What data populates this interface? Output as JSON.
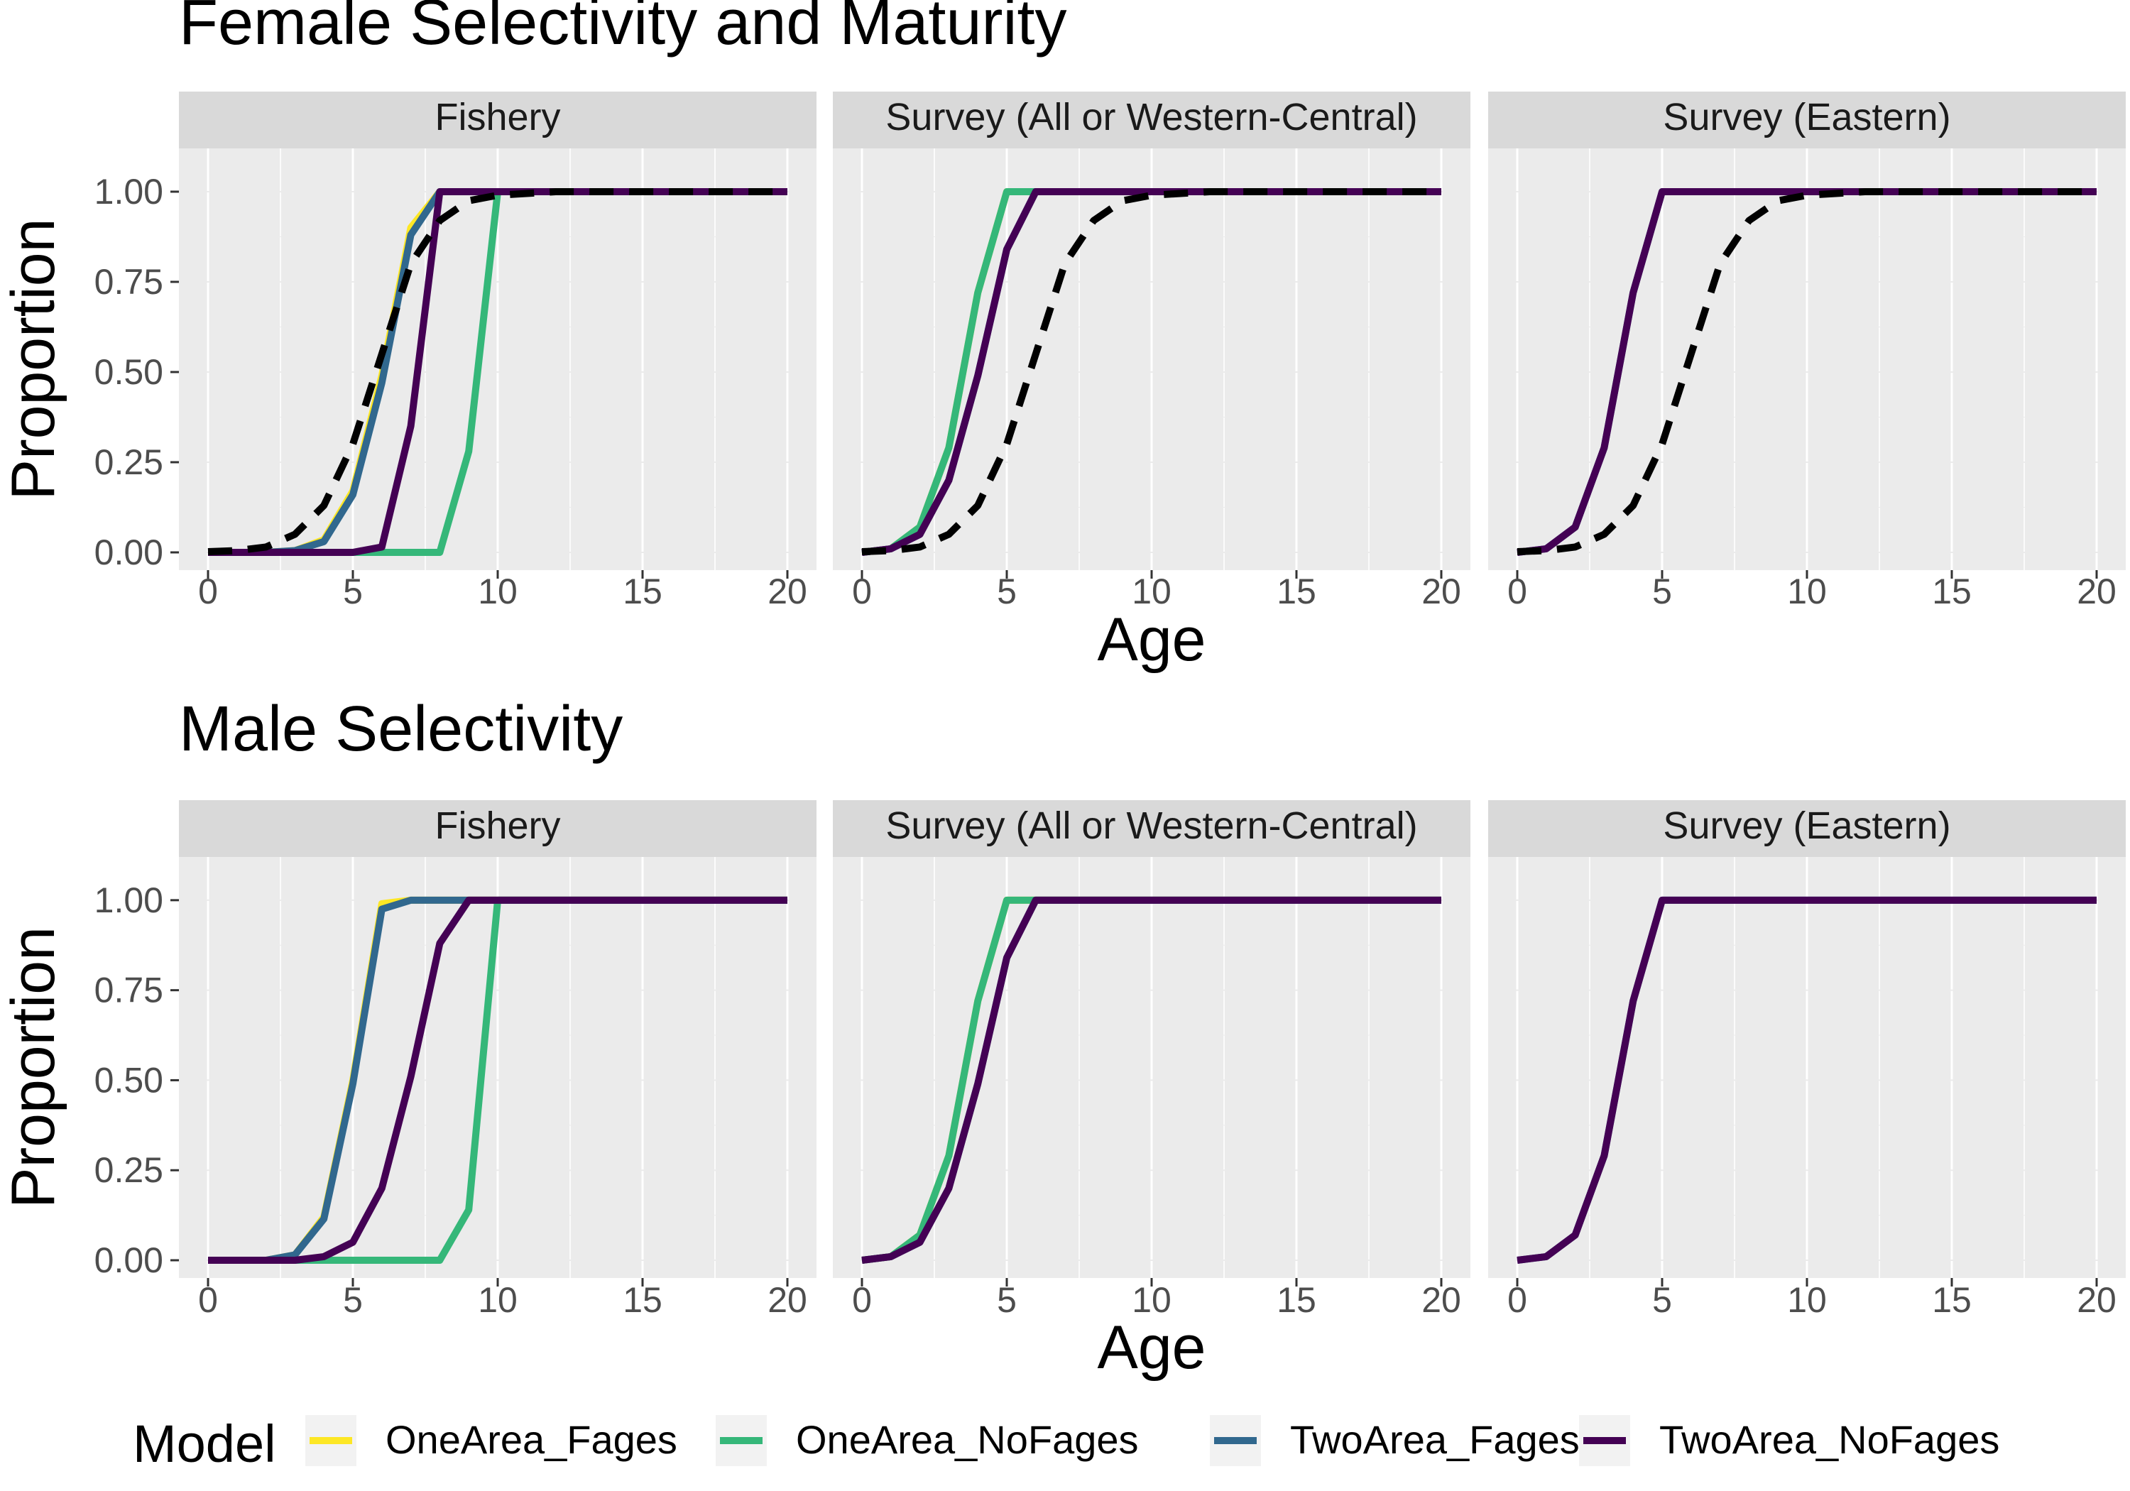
{
  "legend": {
    "title": "Model",
    "items": [
      {
        "label": "OneArea_Fages",
        "color": "#FDE725"
      },
      {
        "label": "OneArea_NoFages",
        "color": "#35B779"
      },
      {
        "label": "TwoArea_Fages",
        "color": "#31688E"
      },
      {
        "label": "TwoArea_NoFages",
        "color": "#440154"
      }
    ],
    "position": "bottom"
  },
  "chart_data": [
    {
      "type": "line",
      "title": "Female Selectivity and Maturity",
      "xlabel": "Age",
      "ylabel": "Proportion",
      "xlim": [
        0,
        20
      ],
      "ylim": [
        0,
        1
      ],
      "x_ticks": [
        0,
        5,
        10,
        15,
        20
      ],
      "y_ticks": [
        "0.00",
        "0.25",
        "0.50",
        "0.75",
        "1.00"
      ],
      "x": [
        0,
        1,
        2,
        3,
        4,
        5,
        6,
        7,
        8,
        9,
        10,
        11,
        12,
        13,
        14,
        15,
        16,
        17,
        18,
        19,
        20
      ],
      "panels": [
        {
          "label": "Fishery",
          "series": [
            {
              "name": "OneArea_Fages",
              "values": [
                0,
                0,
                0,
                0.005,
                0.035,
                0.17,
                0.49,
                0.9,
                1,
                1,
                1,
                1,
                1,
                1,
                1,
                1,
                1,
                1,
                1,
                1,
                1
              ]
            },
            {
              "name": "OneArea_NoFages",
              "values": [
                0,
                0,
                0,
                0,
                0,
                0,
                0,
                0,
                0,
                0.28,
                1,
                1,
                1,
                1,
                1,
                1,
                1,
                1,
                1,
                1,
                1
              ]
            },
            {
              "name": "TwoArea_Fages",
              "values": [
                0,
                0,
                0,
                0.005,
                0.03,
                0.16,
                0.47,
                0.88,
                1,
                1,
                1,
                1,
                1,
                1,
                1,
                1,
                1,
                1,
                1,
                1,
                1
              ]
            },
            {
              "name": "TwoArea_NoFages",
              "values": [
                0,
                0,
                0,
                0,
                0,
                0,
                0.015,
                0.35,
                1,
                1,
                1,
                1,
                1,
                1,
                1,
                1,
                1,
                1,
                1,
                1,
                1
              ]
            },
            {
              "name": "",
              "dashed": true,
              "values": [
                0.002,
                0.005,
                0.015,
                0.05,
                0.13,
                0.3,
                0.55,
                0.8,
                0.92,
                0.975,
                0.99,
                0.995,
                1,
                1,
                1,
                1,
                1,
                1,
                1,
                1,
                1
              ]
            }
          ]
        },
        {
          "label": "Survey (All or Western-Central)",
          "series": [
            {
              "name": "OneArea_Fages",
              "values": [
                0,
                0.01,
                0.07,
                0.29,
                0.72,
                1,
                1,
                1,
                1,
                1,
                1,
                1,
                1,
                1,
                1,
                1,
                1,
                1,
                1,
                1,
                1
              ]
            },
            {
              "name": "OneArea_NoFages",
              "values": [
                0,
                0.01,
                0.07,
                0.29,
                0.72,
                1,
                1,
                1,
                1,
                1,
                1,
                1,
                1,
                1,
                1,
                1,
                1,
                1,
                1,
                1,
                1
              ]
            },
            {
              "name": "TwoArea_Fages",
              "values": [
                0,
                0.01,
                0.05,
                0.2,
                0.49,
                0.84,
                1,
                1,
                1,
                1,
                1,
                1,
                1,
                1,
                1,
                1,
                1,
                1,
                1,
                1,
                1
              ]
            },
            {
              "name": "TwoArea_NoFages",
              "values": [
                0,
                0.01,
                0.05,
                0.2,
                0.49,
                0.84,
                1,
                1,
                1,
                1,
                1,
                1,
                1,
                1,
                1,
                1,
                1,
                1,
                1,
                1,
                1
              ]
            },
            {
              "name": "",
              "dashed": true,
              "values": [
                0.002,
                0.005,
                0.015,
                0.05,
                0.13,
                0.3,
                0.55,
                0.8,
                0.92,
                0.975,
                0.99,
                0.995,
                1,
                1,
                1,
                1,
                1,
                1,
                1,
                1,
                1
              ]
            }
          ]
        },
        {
          "label": "Survey (Eastern)",
          "series": [
            {
              "name": "TwoArea_Fages",
              "values": [
                0,
                0.01,
                0.07,
                0.29,
                0.72,
                1,
                1,
                1,
                1,
                1,
                1,
                1,
                1,
                1,
                1,
                1,
                1,
                1,
                1,
                1,
                1
              ]
            },
            {
              "name": "TwoArea_NoFages",
              "values": [
                0,
                0.01,
                0.07,
                0.29,
                0.72,
                1,
                1,
                1,
                1,
                1,
                1,
                1,
                1,
                1,
                1,
                1,
                1,
                1,
                1,
                1,
                1
              ]
            },
            {
              "name": "",
              "dashed": true,
              "values": [
                0.002,
                0.005,
                0.015,
                0.05,
                0.13,
                0.3,
                0.55,
                0.8,
                0.92,
                0.975,
                0.99,
                0.995,
                1,
                1,
                1,
                1,
                1,
                1,
                1,
                1,
                1
              ]
            }
          ]
        }
      ]
    },
    {
      "type": "line",
      "title": "Male Selectivity",
      "xlabel": "Age",
      "ylabel": "Proportion",
      "xlim": [
        0,
        20
      ],
      "ylim": [
        0,
        1
      ],
      "x_ticks": [
        0,
        5,
        10,
        15,
        20
      ],
      "y_ticks": [
        "0.00",
        "0.25",
        "0.50",
        "0.75",
        "1.00"
      ],
      "x": [
        0,
        1,
        2,
        3,
        4,
        5,
        6,
        7,
        8,
        9,
        10,
        11,
        12,
        13,
        14,
        15,
        16,
        17,
        18,
        19,
        20
      ],
      "panels": [
        {
          "label": "Fishery",
          "series": [
            {
              "name": "OneArea_Fages",
              "values": [
                0,
                0,
                0,
                0.015,
                0.12,
                0.5,
                0.99,
                1,
                1,
                1,
                1,
                1,
                1,
                1,
                1,
                1,
                1,
                1,
                1,
                1,
                1
              ]
            },
            {
              "name": "OneArea_NoFages",
              "values": [
                0,
                0,
                0,
                0,
                0,
                0,
                0,
                0,
                0,
                0.14,
                1,
                1,
                1,
                1,
                1,
                1,
                1,
                1,
                1,
                1,
                1
              ]
            },
            {
              "name": "TwoArea_Fages",
              "values": [
                0,
                0,
                0,
                0.015,
                0.115,
                0.49,
                0.975,
                1,
                1,
                1,
                1,
                1,
                1,
                1,
                1,
                1,
                1,
                1,
                1,
                1,
                1
              ]
            },
            {
              "name": "TwoArea_NoFages",
              "values": [
                0,
                0,
                0,
                0,
                0.01,
                0.05,
                0.2,
                0.51,
                0.88,
                1,
                1,
                1,
                1,
                1,
                1,
                1,
                1,
                1,
                1,
                1,
                1
              ]
            }
          ]
        },
        {
          "label": "Survey (All or Western-Central)",
          "series": [
            {
              "name": "OneArea_Fages",
              "values": [
                0,
                0.01,
                0.07,
                0.29,
                0.72,
                1,
                1,
                1,
                1,
                1,
                1,
                1,
                1,
                1,
                1,
                1,
                1,
                1,
                1,
                1,
                1
              ]
            },
            {
              "name": "OneArea_NoFages",
              "values": [
                0,
                0.01,
                0.07,
                0.29,
                0.72,
                1,
                1,
                1,
                1,
                1,
                1,
                1,
                1,
                1,
                1,
                1,
                1,
                1,
                1,
                1,
                1
              ]
            },
            {
              "name": "TwoArea_Fages",
              "values": [
                0,
                0.01,
                0.05,
                0.2,
                0.49,
                0.84,
                1,
                1,
                1,
                1,
                1,
                1,
                1,
                1,
                1,
                1,
                1,
                1,
                1,
                1,
                1
              ]
            },
            {
              "name": "TwoArea_NoFages",
              "values": [
                0,
                0.01,
                0.05,
                0.2,
                0.49,
                0.84,
                1,
                1,
                1,
                1,
                1,
                1,
                1,
                1,
                1,
                1,
                1,
                1,
                1,
                1,
                1
              ]
            }
          ]
        },
        {
          "label": "Survey (Eastern)",
          "series": [
            {
              "name": "TwoArea_Fages",
              "values": [
                0,
                0.01,
                0.07,
                0.29,
                0.72,
                1,
                1,
                1,
                1,
                1,
                1,
                1,
                1,
                1,
                1,
                1,
                1,
                1,
                1,
                1,
                1
              ]
            },
            {
              "name": "TwoArea_NoFages",
              "values": [
                0,
                0.01,
                0.07,
                0.29,
                0.72,
                1,
                1,
                1,
                1,
                1,
                1,
                1,
                1,
                1,
                1,
                1,
                1,
                1,
                1,
                1,
                1
              ]
            }
          ]
        }
      ]
    }
  ]
}
